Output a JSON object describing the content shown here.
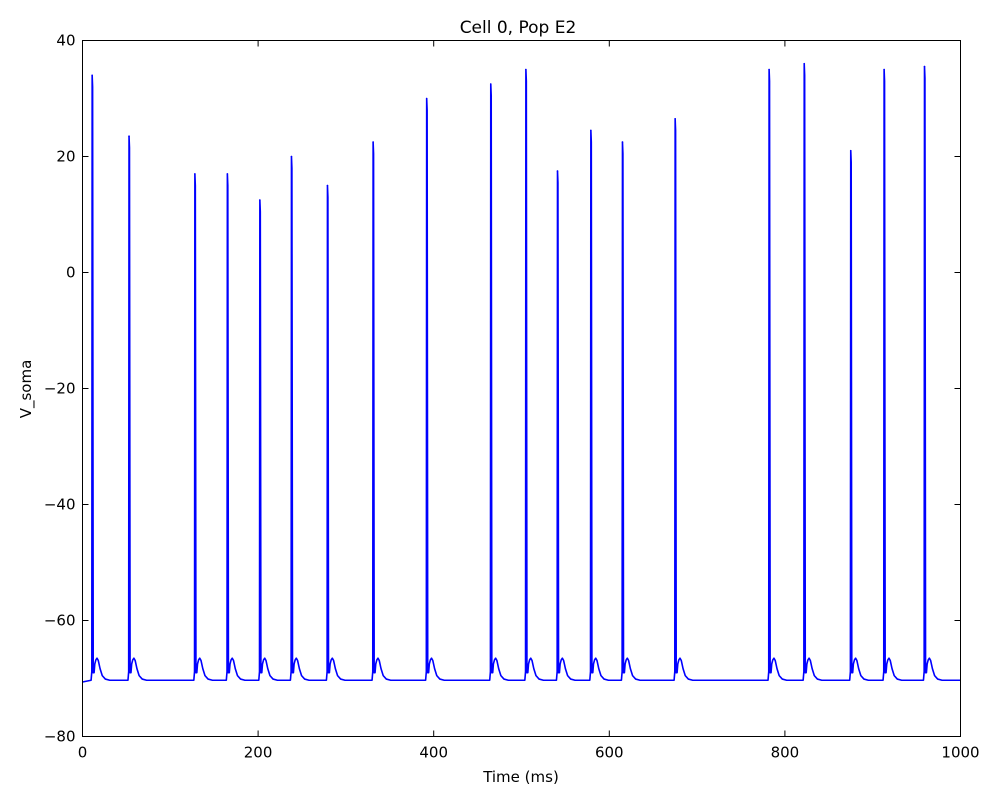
{
  "chart_data": {
    "type": "line",
    "title": "Cell 0, Pop E2",
    "xlabel": "Time (ms)",
    "ylabel": "V_soma",
    "xlim": [
      0,
      1000
    ],
    "ylim": [
      -80,
      40
    ],
    "x_ticks": [
      0,
      200,
      400,
      600,
      800,
      1000
    ],
    "y_ticks": [
      -80,
      -60,
      -40,
      -20,
      0,
      20,
      40
    ],
    "x_tick_labels": [
      "0",
      "200",
      "400",
      "600",
      "800",
      "1000"
    ],
    "y_tick_labels": [
      "−80",
      "−60",
      "−40",
      "−20",
      "0",
      "20",
      "40"
    ],
    "grid": false,
    "legend": "none",
    "series": [
      {
        "color": "#0000ff",
        "resting_potential": -70.3,
        "spike_trough": -69,
        "afterpotential_peak": -66.5,
        "spikes": [
          {
            "t": 11,
            "peak": 34
          },
          {
            "t": 53,
            "peak": 23.5
          },
          {
            "t": 128,
            "peak": 17
          },
          {
            "t": 165,
            "peak": 17
          },
          {
            "t": 202,
            "peak": 12.5
          },
          {
            "t": 238,
            "peak": 20
          },
          {
            "t": 279,
            "peak": 15
          },
          {
            "t": 331,
            "peak": 22.5
          },
          {
            "t": 392,
            "peak": 30
          },
          {
            "t": 465,
            "peak": 32.5
          },
          {
            "t": 505,
            "peak": 35
          },
          {
            "t": 541,
            "peak": 17.5
          },
          {
            "t": 579,
            "peak": 24.5
          },
          {
            "t": 615,
            "peak": 22.5
          },
          {
            "t": 675,
            "peak": 26.5
          },
          {
            "t": 782,
            "peak": 35
          },
          {
            "t": 822,
            "peak": 36
          },
          {
            "t": 875,
            "peak": 21
          },
          {
            "t": 913,
            "peak": 35
          },
          {
            "t": 959,
            "peak": 35.5
          }
        ]
      }
    ]
  }
}
